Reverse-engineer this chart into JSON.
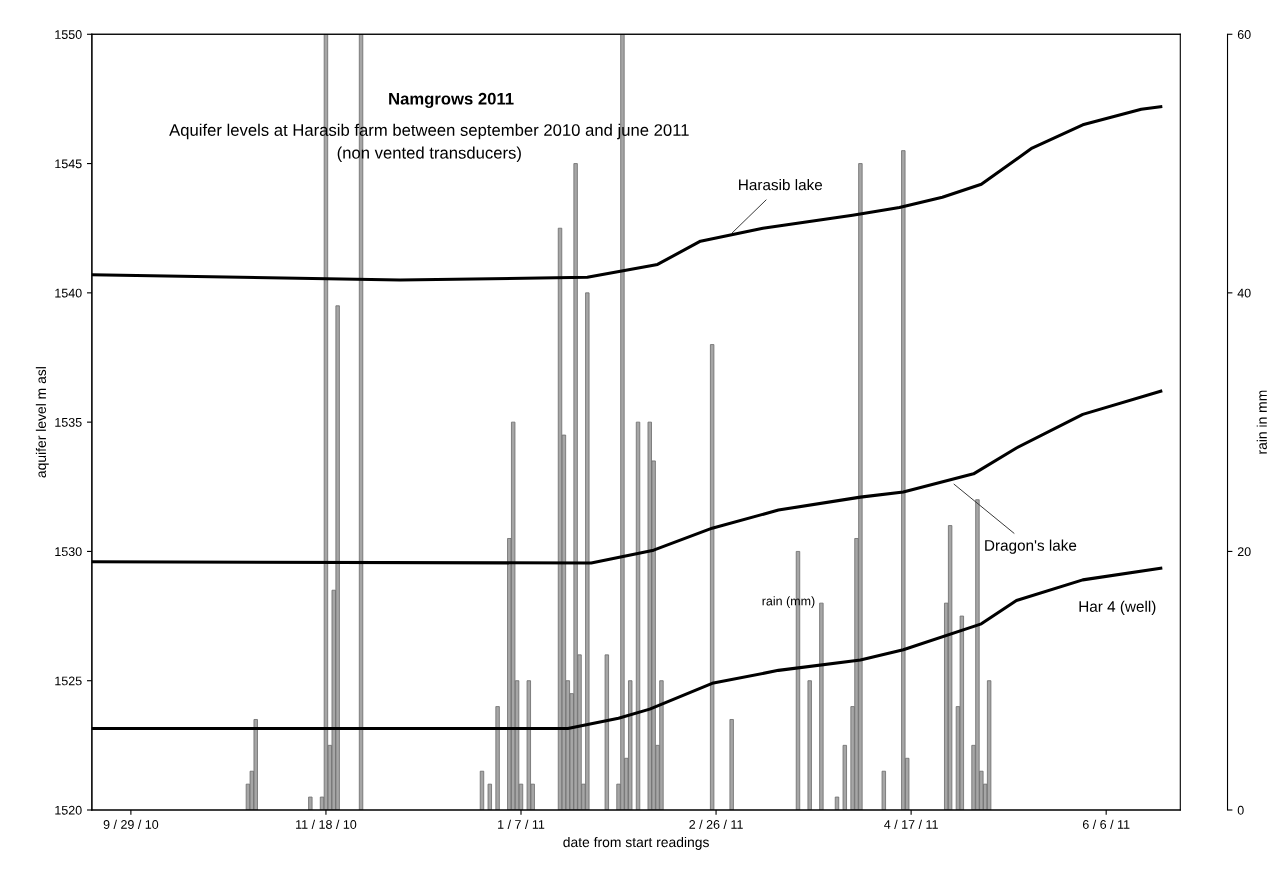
{
  "chart_data": {
    "type": "line",
    "title": "Namgrows 2011",
    "subtitle": "Aquifer levels at Harasib farm between september 2010 and june 2011\n(non vented transducers)",
    "xlabel": "date from start readings",
    "ylabel": "aquifer level m asl",
    "y2label": "rain in mm",
    "xlim": [
      "2010-09-19",
      "2011-06-25"
    ],
    "xticks": [
      {
        "value": "2010-09-29",
        "label": "9 / 29 / 10"
      },
      {
        "value": "2010-11-18",
        "label": "11 / 18 / 10"
      },
      {
        "value": "2011-01-07",
        "label": "1 / 7 / 11"
      },
      {
        "value": "2011-02-26",
        "label": "2 / 26 / 11"
      },
      {
        "value": "2011-04-17",
        "label": "4 / 17 / 11"
      },
      {
        "value": "2011-06-06",
        "label": "6 / 6 / 11"
      }
    ],
    "ylim": [
      1520,
      1550
    ],
    "yticks": [
      1520,
      1525,
      1530,
      1535,
      1540,
      1545,
      1550
    ],
    "y2lim": [
      0,
      60
    ],
    "y2ticks": [
      0,
      20,
      40,
      60
    ],
    "grid": false,
    "legend": false,
    "marker": "none",
    "line_style": "solid",
    "series": [
      {
        "type": "bar",
        "axis": "y2",
        "color": "#a6a6a6",
        "x": [
          "2010-10-29",
          "2010-10-30",
          "2010-10-31",
          "2010-11-14",
          "2010-11-17",
          "2010-11-18",
          "2010-11-19",
          "2010-11-20",
          "2010-11-21",
          "2010-11-27",
          "2010-12-28",
          "2010-12-30",
          "2011-01-01",
          "2011-01-04",
          "2011-01-05",
          "2011-01-06",
          "2011-01-07",
          "2011-01-09",
          "2011-01-10",
          "2011-01-17",
          "2011-01-18",
          "2011-01-19",
          "2011-01-20",
          "2011-01-21",
          "2011-01-22",
          "2011-01-23",
          "2011-01-24",
          "2011-01-29",
          "2011-02-01",
          "2011-02-02",
          "2011-02-03",
          "2011-02-04",
          "2011-02-06",
          "2011-02-09",
          "2011-02-10",
          "2011-02-11",
          "2011-02-12",
          "2011-02-25",
          "2011-03-02",
          "2011-03-19",
          "2011-03-22",
          "2011-03-25",
          "2011-03-29",
          "2011-03-31",
          "2011-04-02",
          "2011-04-03",
          "2011-04-04",
          "2011-04-10",
          "2011-04-15",
          "2011-04-16",
          "2011-04-26",
          "2011-04-27",
          "2011-04-29",
          "2011-04-30",
          "2011-05-03",
          "2011-05-04",
          "2011-05-05",
          "2011-05-06",
          "2011-05-07"
        ],
        "values": [
          2,
          3,
          7,
          1,
          1,
          60,
          5,
          17,
          39,
          60,
          3,
          2,
          8,
          21,
          30,
          10,
          2,
          10,
          2,
          45,
          29,
          10,
          9,
          50,
          12,
          2,
          40,
          12,
          2,
          60,
          4,
          10,
          30,
          30,
          27,
          5,
          10,
          36,
          7,
          20,
          10,
          16,
          1,
          5,
          8,
          21,
          50,
          3,
          51,
          4,
          16,
          22,
          8,
          15,
          5,
          24,
          3,
          2,
          10
        ]
      },
      {
        "color": "#000000",
        "x": [
          "2010-09-19",
          "2010-12-07",
          "2011-01-24",
          "2011-02-11",
          "2011-02-22",
          "2011-03-10",
          "2011-04-02",
          "2011-04-14",
          "2011-04-25",
          "2011-05-05",
          "2011-05-18",
          "2011-05-31",
          "2011-06-15",
          "2011-06-20"
        ],
        "values": [
          1540.7,
          1540.5,
          1540.6,
          1541.1,
          1542.0,
          1542.5,
          1543.0,
          1543.3,
          1543.7,
          1544.2,
          1545.6,
          1546.5,
          1547.1,
          1547.2
        ]
      },
      {
        "color": "#000000",
        "x": [
          "2010-09-19",
          "2011-01-25",
          "2011-02-10",
          "2011-02-25",
          "2011-03-14",
          "2011-04-04",
          "2011-04-15",
          "2011-05-03",
          "2011-05-14",
          "2011-05-31",
          "2011-06-20"
        ],
        "values": [
          1529.6,
          1529.55,
          1530.05,
          1530.9,
          1531.6,
          1532.1,
          1532.3,
          1533.0,
          1534.0,
          1535.3,
          1536.2
        ]
      },
      {
        "color": "#000000",
        "x": [
          "2010-09-19",
          "2011-01-19",
          "2011-02-01",
          "2011-02-09",
          "2011-02-25",
          "2011-03-14",
          "2011-04-04",
          "2011-04-15",
          "2011-05-05",
          "2011-05-14",
          "2011-05-31",
          "2011-06-20"
        ],
        "values": [
          1523.15,
          1523.15,
          1523.55,
          1523.9,
          1524.9,
          1525.4,
          1525.8,
          1526.2,
          1527.2,
          1528.1,
          1528.9,
          1529.35
        ]
      }
    ],
    "annotations": [
      {
        "text": "Harasib lake",
        "x": "2011-03-02",
        "y": 1542.3
      },
      {
        "text": "Dragon's lake",
        "x": "2011-04-28",
        "y": 1532.6
      },
      {
        "text": "Har 4 (well)",
        "x": "2011-06-06",
        "y": 1529.0
      },
      "rain (mm)"
    ]
  }
}
